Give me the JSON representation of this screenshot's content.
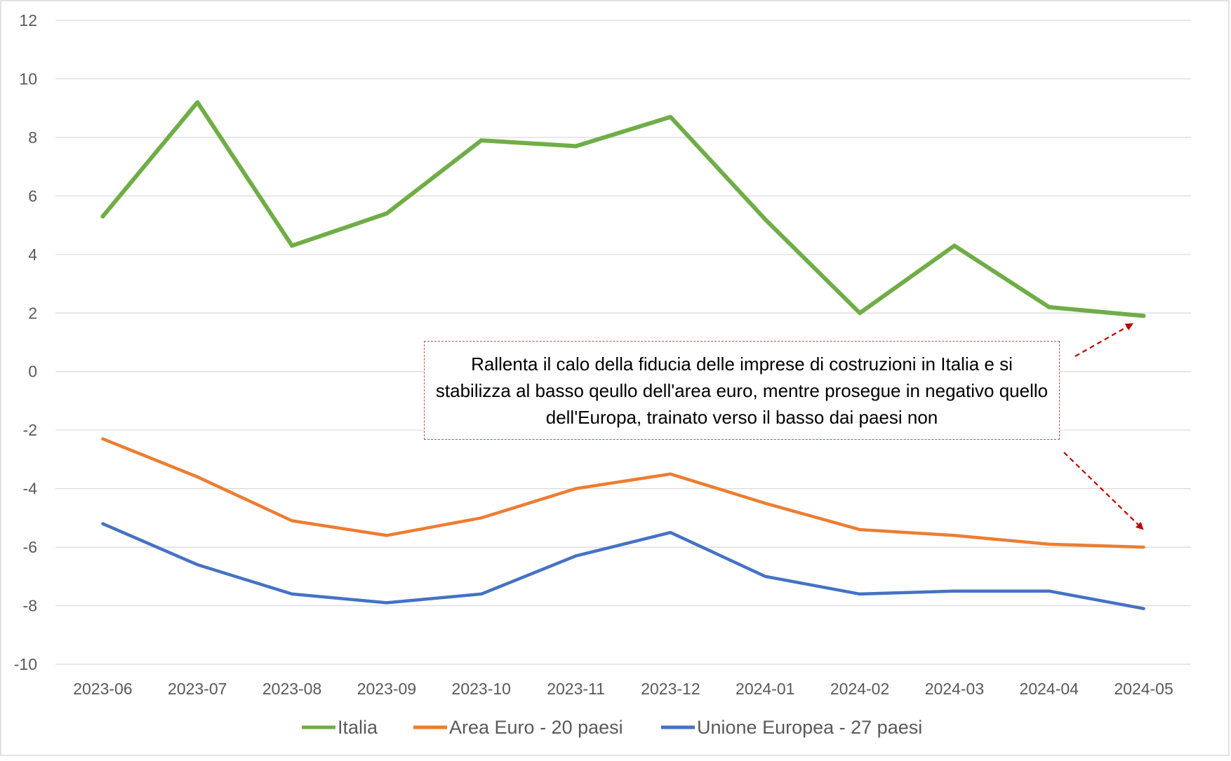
{
  "chart_data": {
    "type": "line",
    "title": "",
    "xlabel": "",
    "ylabel": "",
    "categories": [
      "2023-06",
      "2023-07",
      "2023-08",
      "2023-09",
      "2023-10",
      "2023-11",
      "2023-12",
      "2024-01",
      "2024-02",
      "2024-03",
      "2024-04",
      "2024-05"
    ],
    "ylim": [
      -10,
      12
    ],
    "yticks": [
      "12",
      "10",
      "8",
      "6",
      "4",
      "2",
      "0",
      "-2",
      "-4",
      "-6",
      "-8",
      "-10"
    ],
    "grid": true,
    "legend_position": "bottom",
    "series": [
      {
        "name": "Italia",
        "color": "#70ad47",
        "values": [
          5.3,
          9.2,
          4.3,
          5.4,
          7.9,
          7.7,
          8.7,
          5.2,
          2.0,
          4.3,
          2.2,
          1.9
        ]
      },
      {
        "name": "Area Euro - 20 paesi",
        "color": "#ed7d31",
        "values": [
          -2.3,
          -3.6,
          -5.1,
          -5.6,
          -5.0,
          -4.0,
          -3.5,
          -4.5,
          -5.4,
          -5.6,
          -5.9,
          -6.0
        ]
      },
      {
        "name": "Unione Europea - 27 paesi",
        "color": "#4472c4",
        "values": [
          -5.2,
          -6.6,
          -7.6,
          -7.9,
          -7.6,
          -6.3,
          -5.5,
          -7.0,
          -7.6,
          -7.5,
          -7.5,
          -8.1
        ]
      }
    ],
    "annotation": {
      "text": "Rallenta il calo della fiducia delle imprese di costruzioni in Italia e si stabilizza al basso qeullo dell'area euro, mentre prosegue in negativo quello dell'Europa, trainato verso il basso dai paesi non",
      "border_color": "#c0504d",
      "arrow_color": "#c00000"
    }
  }
}
